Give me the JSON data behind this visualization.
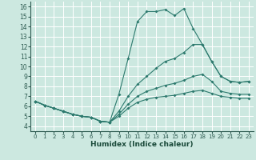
{
  "xlabel": "Humidex (Indice chaleur)",
  "bg_color": "#cce8e0",
  "grid_color": "#b0d8cf",
  "line_color": "#2d7a6e",
  "xlim": [
    -0.5,
    23.5
  ],
  "ylim": [
    3.5,
    16.5
  ],
  "xticks": [
    0,
    1,
    2,
    3,
    4,
    5,
    6,
    7,
    8,
    9,
    10,
    11,
    12,
    13,
    14,
    15,
    16,
    17,
    18,
    19,
    20,
    21,
    22,
    23
  ],
  "yticks": [
    4,
    5,
    6,
    7,
    8,
    9,
    10,
    11,
    12,
    13,
    14,
    15,
    16
  ],
  "lines": [
    {
      "x": [
        0,
        1,
        2,
        3,
        4,
        5,
        6,
        7,
        8,
        9,
        10,
        11,
        12,
        13,
        14,
        15,
        16,
        17,
        18,
        19,
        20,
        21,
        22,
        23
      ],
      "y": [
        6.5,
        6.1,
        5.8,
        5.5,
        5.2,
        5.0,
        4.9,
        4.5,
        4.4,
        7.2,
        10.8,
        14.5,
        15.5,
        15.5,
        15.7,
        15.1,
        15.8,
        13.8,
        12.2,
        10.5,
        9.0,
        8.5,
        8.4,
        8.5
      ]
    },
    {
      "x": [
        0,
        1,
        2,
        3,
        4,
        5,
        6,
        7,
        8,
        9,
        10,
        11,
        12,
        13,
        14,
        15,
        16,
        17,
        18,
        19,
        20,
        21,
        22,
        23
      ],
      "y": [
        6.5,
        6.1,
        5.8,
        5.5,
        5.2,
        5.0,
        4.9,
        4.5,
        4.4,
        5.5,
        7.0,
        8.2,
        9.0,
        9.8,
        10.5,
        10.8,
        11.4,
        12.2,
        12.2,
        10.5,
        9.0,
        8.5,
        8.4,
        8.5
      ]
    },
    {
      "x": [
        0,
        1,
        2,
        3,
        4,
        5,
        6,
        7,
        8,
        9,
        10,
        11,
        12,
        13,
        14,
        15,
        16,
        17,
        18,
        19,
        20,
        21,
        22,
        23
      ],
      "y": [
        6.5,
        6.1,
        5.8,
        5.5,
        5.2,
        5.0,
        4.9,
        4.5,
        4.4,
        5.2,
        6.2,
        7.0,
        7.5,
        7.8,
        8.1,
        8.3,
        8.6,
        9.0,
        9.2,
        8.5,
        7.5,
        7.3,
        7.2,
        7.2
      ]
    },
    {
      "x": [
        0,
        1,
        2,
        3,
        4,
        5,
        6,
        7,
        8,
        9,
        10,
        11,
        12,
        13,
        14,
        15,
        16,
        17,
        18,
        19,
        20,
        21,
        22,
        23
      ],
      "y": [
        6.5,
        6.1,
        5.8,
        5.5,
        5.2,
        5.0,
        4.9,
        4.5,
        4.4,
        5.0,
        5.8,
        6.4,
        6.7,
        6.9,
        7.0,
        7.1,
        7.3,
        7.5,
        7.6,
        7.3,
        7.0,
        6.9,
        6.8,
        6.8
      ]
    }
  ]
}
